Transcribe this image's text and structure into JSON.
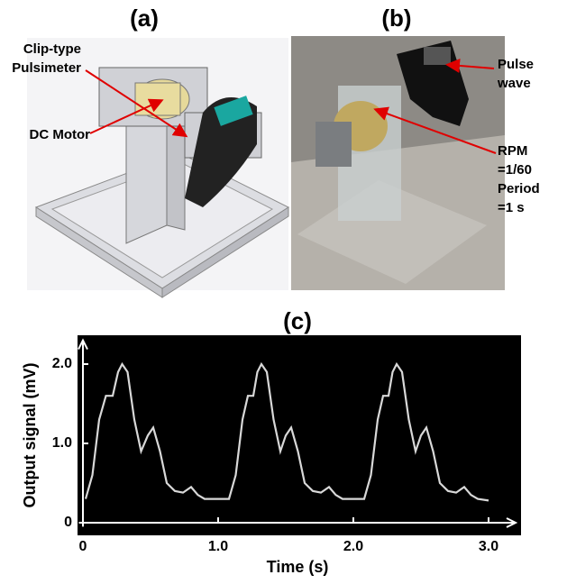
{
  "panels": {
    "a": {
      "label": "(a)",
      "annotations": [
        {
          "lines": [
            "Clip-type",
            "Pulsimeter"
          ]
        },
        {
          "lines": [
            "DC Motor"
          ]
        }
      ]
    },
    "b": {
      "label": "(b)",
      "annotations": [
        {
          "lines": [
            "Pulse",
            "wave"
          ]
        },
        {
          "lines": [
            "RPM",
            "=1/60",
            "Period",
            "=1 s"
          ]
        }
      ]
    }
  },
  "chart_data": {
    "type": "line",
    "title": "(c)",
    "x_label": "Time (s)",
    "y_label": "Output signal (mV)",
    "x": [
      0.02,
      0.07,
      0.12,
      0.17,
      0.22,
      0.26,
      0.29,
      0.33,
      0.38,
      0.43,
      0.48,
      0.52,
      0.57,
      0.62,
      0.68,
      0.74,
      0.8,
      0.85,
      0.9,
      1.08,
      1.13,
      1.18,
      1.22,
      1.26,
      1.29,
      1.32,
      1.36,
      1.41,
      1.46,
      1.5,
      1.54,
      1.59,
      1.64,
      1.7,
      1.76,
      1.82,
      1.87,
      1.92,
      2.08,
      2.13,
      2.18,
      2.22,
      2.26,
      2.29,
      2.32,
      2.36,
      2.41,
      2.46,
      2.5,
      2.54,
      2.59,
      2.64,
      2.7,
      2.76,
      2.82,
      2.87,
      2.92,
      3.0
    ],
    "values": [
      0.3,
      0.6,
      1.3,
      1.6,
      1.6,
      1.9,
      2.0,
      1.9,
      1.3,
      0.9,
      1.1,
      1.2,
      0.9,
      0.5,
      0.4,
      0.38,
      0.45,
      0.35,
      0.3,
      0.3,
      0.6,
      1.3,
      1.6,
      1.6,
      1.9,
      2.0,
      1.9,
      1.3,
      0.9,
      1.1,
      1.2,
      0.9,
      0.5,
      0.4,
      0.38,
      0.45,
      0.35,
      0.3,
      0.3,
      0.6,
      1.3,
      1.6,
      1.6,
      1.9,
      2.0,
      1.9,
      1.3,
      0.9,
      1.1,
      1.2,
      0.9,
      0.5,
      0.4,
      0.38,
      0.45,
      0.35,
      0.3,
      0.28
    ],
    "color": "#d8d8d8",
    "xlim": [
      -0.03,
      3.2
    ],
    "ylim": [
      -0.05,
      2.3
    ],
    "xticks": [
      0,
      {
        "value": 1,
        "label": "1.0"
      },
      {
        "value": 2,
        "label": "2.0"
      },
      {
        "value": 3,
        "label": "3.0"
      }
    ],
    "yticks": [
      0,
      {
        "value": 1,
        "label": "1.0"
      },
      {
        "value": 2,
        "label": "2.0"
      }
    ]
  }
}
